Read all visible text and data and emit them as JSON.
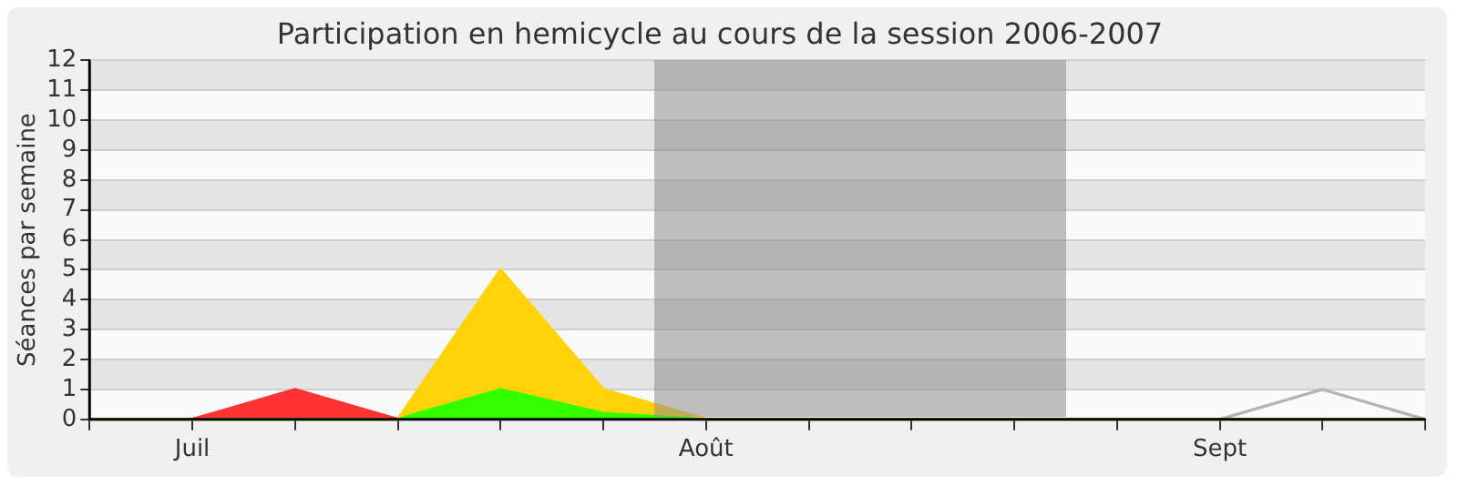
{
  "chart_data": {
    "type": "area",
    "title": "Participation en hemicycle au cours de la session 2006-2007",
    "ylabel": "Séances par semaine",
    "stacked": true,
    "categories": [
      null,
      "Juil",
      null,
      null,
      null,
      null,
      "Août",
      null,
      null,
      null,
      null,
      "Sept",
      null,
      null
    ],
    "series": [
      {
        "color": "#33ff00",
        "values": [
          0,
          0,
          0,
          0,
          1,
          0.2,
          0,
          0,
          0,
          0,
          0,
          0,
          0,
          0
        ]
      },
      {
        "color": "#ffd20a",
        "values": [
          0,
          0,
          0,
          0,
          4,
          0.8,
          0,
          0,
          0,
          0,
          0,
          0,
          0,
          0
        ]
      },
      {
        "color": "#ff3333",
        "values": [
          null,
          0,
          1,
          0,
          null,
          null,
          null,
          null,
          null,
          null,
          null,
          null,
          null,
          null
        ]
      },
      {
        "type": "line",
        "color": "#b4b4b4",
        "values": [
          null,
          null,
          null,
          null,
          null,
          null,
          null,
          null,
          null,
          null,
          null,
          0,
          1,
          0
        ]
      }
    ],
    "ylim": [
      0,
      12
    ],
    "yticks": [
      0,
      1,
      2,
      3,
      4,
      5,
      6,
      7,
      8,
      9,
      10,
      11,
      12
    ],
    "grid": "y",
    "legend": false,
    "marker": "none"
  }
}
